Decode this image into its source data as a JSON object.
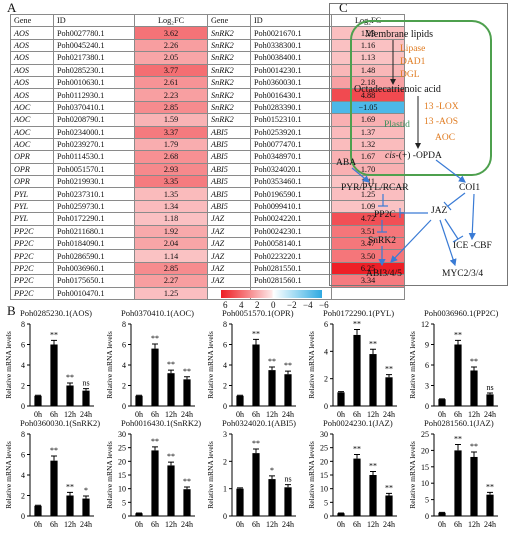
{
  "panel_a": {
    "letter": "A",
    "headers": [
      "Gene",
      "ID",
      "Log₂FC",
      "Gene",
      "ID",
      "Log₂FC"
    ],
    "left_rows": [
      {
        "gene": "AOS",
        "id": "Poh0027780.1",
        "fc": "3.62"
      },
      {
        "gene": "AOS",
        "id": "Poh0045240.1",
        "fc": "2.26"
      },
      {
        "gene": "AOS",
        "id": "Poh0217380.1",
        "fc": "2.05"
      },
      {
        "gene": "AOS",
        "id": "Poh0285230.1",
        "fc": "3.77"
      },
      {
        "gene": "AOS",
        "id": "Poh0010630.1",
        "fc": "2.61"
      },
      {
        "gene": "AOS",
        "id": "Poh0112930.1",
        "fc": "2.23"
      },
      {
        "gene": "AOC",
        "id": "Poh0370410.1",
        "fc": "2.85"
      },
      {
        "gene": "AOC",
        "id": "Poh0208790.1",
        "fc": "1.59"
      },
      {
        "gene": "AOC",
        "id": "Poh0234000.1",
        "fc": "3.37"
      },
      {
        "gene": "AOC",
        "id": "Poh0239270.1",
        "fc": "1.79"
      },
      {
        "gene": "OPR",
        "id": "Poh0114530.1",
        "fc": "2.68"
      },
      {
        "gene": "OPR",
        "id": "Poh0051570.1",
        "fc": "2.93"
      },
      {
        "gene": "OPR",
        "id": "Poh0219930.1",
        "fc": "3.35"
      },
      {
        "gene": "PYL",
        "id": "Poh0237310.1",
        "fc": "1.35"
      },
      {
        "gene": "PYL",
        "id": "Poh0259730.1",
        "fc": "1.34"
      },
      {
        "gene": "PYL",
        "id": "Poh0172290.1",
        "fc": "1.18"
      },
      {
        "gene": "PP2C",
        "id": "Poh0211680.1",
        "fc": "1.92"
      },
      {
        "gene": "PP2C",
        "id": "Poh0184090.1",
        "fc": "2.04"
      },
      {
        "gene": "PP2C",
        "id": "Poh0286590.1",
        "fc": "1.14"
      },
      {
        "gene": "PP2C",
        "id": "Poh0036960.1",
        "fc": "2.85"
      },
      {
        "gene": "PP2C",
        "id": "Poh0175650.1",
        "fc": "2.27"
      },
      {
        "gene": "PP2C",
        "id": "Poh0010470.1",
        "fc": "1.25"
      }
    ],
    "right_rows": [
      {
        "gene": "SnRK2",
        "id": "Poh0021670.1",
        "fc": "1.23"
      },
      {
        "gene": "SnRK2",
        "id": "Poh0338300.1",
        "fc": "1.16"
      },
      {
        "gene": "SnRK2",
        "id": "Poh0038400.1",
        "fc": "1.13"
      },
      {
        "gene": "SnRK2",
        "id": "Poh0014230.1",
        "fc": "1.48"
      },
      {
        "gene": "SnRK2",
        "id": "Poh0360030.1",
        "fc": "2.18"
      },
      {
        "gene": "SnRK2",
        "id": "Poh0016430.1",
        "fc": "4.88"
      },
      {
        "gene": "SnRK2",
        "id": "Poh0283390.1",
        "fc": "−1.05"
      },
      {
        "gene": "SnRK2",
        "id": "Poh0152310.1",
        "fc": "1.69"
      },
      {
        "gene": "ABI5",
        "id": "Poh0253920.1",
        "fc": "1.37"
      },
      {
        "gene": "ABI5",
        "id": "Poh0077470.1",
        "fc": "1.32"
      },
      {
        "gene": "ABI5",
        "id": "Poh0348970.1",
        "fc": "1.67"
      },
      {
        "gene": "ABI5",
        "id": "Poh0324020.1",
        "fc": "1.70"
      },
      {
        "gene": "ABI5",
        "id": "Poh0353460.1",
        "fc": "1.11"
      },
      {
        "gene": "ABI5",
        "id": "Poh0196590.1",
        "fc": "1.25"
      },
      {
        "gene": "ABI5",
        "id": "Poh0099410.1",
        "fc": "1.09"
      },
      {
        "gene": "JAZ",
        "id": "Poh0024220.1",
        "fc": "4.72"
      },
      {
        "gene": "JAZ",
        "id": "Poh0024230.1",
        "fc": "3.51"
      },
      {
        "gene": "JAZ",
        "id": "Poh0058140.1",
        "fc": "3.47"
      },
      {
        "gene": "JAZ",
        "id": "Poh0223220.1",
        "fc": "3.50"
      },
      {
        "gene": "JAZ",
        "id": "Poh0281550.1",
        "fc": "6.25"
      },
      {
        "gene": "JAZ",
        "id": "Poh0281560.1",
        "fc": "3.34"
      }
    ],
    "colorbar_labels": [
      "6",
      "4",
      "2",
      "0",
      "−2",
      "−4",
      "−6"
    ],
    "colors": {
      "high": "#ee1d24",
      "low": "#fde6e6",
      "neg": "#4cb8e8"
    }
  },
  "panel_c": {
    "letter": "C",
    "membrane_lipids": "Membrane lipids",
    "lipase": "Lipase",
    "dad1": "DAD1",
    "dgl": "DGL",
    "octa": "Octadecatrienoic acid",
    "lox": "13 -LOX",
    "aos": "13 -AOS",
    "aoc": "AOC",
    "plastid": "Plastid",
    "opda_prefix": "cis",
    "opda": "-(+) -OPDA",
    "aba": "ABA",
    "pyr": "PYR/PYL/RCAR",
    "coi1": "COI1",
    "pp2c": "PP2C",
    "jaz": "JAZ",
    "snrk2": "SnRK2",
    "ice": "ICE -CBF",
    "abi": "ABI3/4/5",
    "myc": "MYC2/3/4"
  },
  "panel_b": {
    "letter": "B",
    "ylabel": "Relative mRNA levels",
    "x_labels": [
      "0h",
      "6h",
      "12h",
      "24h"
    ],
    "bar_color": "#000000"
  },
  "chart_data": [
    {
      "type": "bar",
      "title": "Poh0285230.1(AOS)",
      "categories": [
        "0h",
        "6h",
        "12h",
        "24h"
      ],
      "values": [
        1,
        6,
        2,
        1.5
      ],
      "errors": [
        0.05,
        0.4,
        0.25,
        0.2
      ],
      "significance": [
        "",
        "**",
        "**",
        "ns"
      ],
      "ylim": [
        0,
        8
      ],
      "yticks": [
        0,
        2,
        4,
        6,
        8
      ],
      "ylabel": "Relative mRNA levels"
    },
    {
      "type": "bar",
      "title": "Poh0370410.1(AOC)",
      "categories": [
        "0h",
        "6h",
        "12h",
        "24h"
      ],
      "values": [
        1,
        5.6,
        3.2,
        2.6
      ],
      "errors": [
        0.05,
        0.45,
        0.3,
        0.25
      ],
      "significance": [
        "",
        "**",
        "**",
        "**"
      ],
      "ylim": [
        0,
        8
      ],
      "yticks": [
        0,
        2,
        4,
        6,
        8
      ],
      "ylabel": "Relative mRNA levels"
    },
    {
      "type": "bar",
      "title": "Poh0051570.1(OPR)",
      "categories": [
        "0h",
        "6h",
        "12h",
        "24h"
      ],
      "values": [
        1,
        6,
        3.5,
        3.1
      ],
      "errors": [
        0.05,
        0.5,
        0.3,
        0.3
      ],
      "significance": [
        "",
        "**",
        "**",
        "**"
      ],
      "ylim": [
        0,
        8
      ],
      "yticks": [
        0,
        2,
        4,
        6,
        8
      ],
      "ylabel": "Relative mRNA levels"
    },
    {
      "type": "bar",
      "title": "Poh0172290.1(PYL)",
      "categories": [
        "0h",
        "6h",
        "12h",
        "24h"
      ],
      "values": [
        1,
        5.2,
        3.8,
        2.1
      ],
      "errors": [
        0.05,
        0.4,
        0.35,
        0.2
      ],
      "significance": [
        "",
        "**",
        "**",
        "**"
      ],
      "ylim": [
        0,
        6
      ],
      "yticks": [
        0,
        2,
        4,
        6
      ],
      "ylabel": "Relative mRNA levels"
    },
    {
      "type": "bar",
      "title": "Poh0036960.1(PP2C)",
      "categories": [
        "0h",
        "6h",
        "12h",
        "24h"
      ],
      "values": [
        1,
        9,
        5.2,
        1.7
      ],
      "errors": [
        0.05,
        0.6,
        0.5,
        0.2
      ],
      "significance": [
        "",
        "**",
        "**",
        "ns"
      ],
      "ylim": [
        0,
        12
      ],
      "yticks": [
        0,
        3,
        6,
        9,
        12
      ],
      "ylabel": "Relative mRNA levels"
    },
    {
      "type": "bar",
      "title": "Poh0360030.1(SnRK2)",
      "categories": [
        "0h",
        "6h",
        "12h",
        "24h"
      ],
      "values": [
        1,
        5.4,
        2,
        1.7
      ],
      "errors": [
        0.05,
        0.45,
        0.3,
        0.25
      ],
      "significance": [
        "",
        "**",
        "**",
        "*"
      ],
      "ylim": [
        0,
        8
      ],
      "yticks": [
        0,
        2,
        4,
        6,
        8
      ],
      "ylabel": "Relative mRNA levels"
    },
    {
      "type": "bar",
      "title": "Poh0016430.1(SnRK2)",
      "categories": [
        "0h",
        "6h",
        "12h",
        "24h"
      ],
      "values": [
        1,
        24,
        18.5,
        9.8
      ],
      "errors": [
        0.1,
        1.3,
        1.2,
        0.8
      ],
      "significance": [
        "",
        "**",
        "**",
        "**"
      ],
      "ylim": [
        0,
        30
      ],
      "yticks": [
        0,
        5,
        10,
        15,
        20,
        25,
        30
      ],
      "ylabel": "Relative mRNA levels"
    },
    {
      "type": "bar",
      "title": "Poh0324020.1(ABI5)",
      "categories": [
        "0h",
        "6h",
        "12h",
        "24h"
      ],
      "values": [
        1,
        2.3,
        1.35,
        1.05
      ],
      "errors": [
        0.03,
        0.15,
        0.12,
        0.1
      ],
      "significance": [
        "",
        "**",
        "*",
        "ns"
      ],
      "ylim": [
        0,
        3
      ],
      "yticks": [
        0,
        1,
        2,
        3
      ],
      "ylabel": "Relative mRNA levels"
    },
    {
      "type": "bar",
      "title": "Poh0024230.1(JAZ)",
      "categories": [
        "0h",
        "6h",
        "12h",
        "24h"
      ],
      "values": [
        1,
        21,
        15,
        7.5
      ],
      "errors": [
        0.1,
        1.5,
        1.3,
        0.8
      ],
      "significance": [
        "",
        "**",
        "**",
        "**"
      ],
      "ylim": [
        0,
        30
      ],
      "yticks": [
        0,
        5,
        10,
        15,
        20,
        25,
        30
      ],
      "ylabel": "Relative mRNA levels"
    },
    {
      "type": "bar",
      "title": "Poh0281560.1(JAZ)",
      "categories": [
        "0h",
        "6h",
        "12h",
        "24h"
      ],
      "values": [
        1,
        20,
        18,
        6.5
      ],
      "errors": [
        0.1,
        1.8,
        1.5,
        0.7
      ],
      "significance": [
        "",
        "**",
        "**",
        "**"
      ],
      "ylim": [
        0,
        25
      ],
      "yticks": [
        0,
        5,
        10,
        15,
        20,
        25
      ],
      "ylabel": "Relative mRNA levels"
    }
  ]
}
